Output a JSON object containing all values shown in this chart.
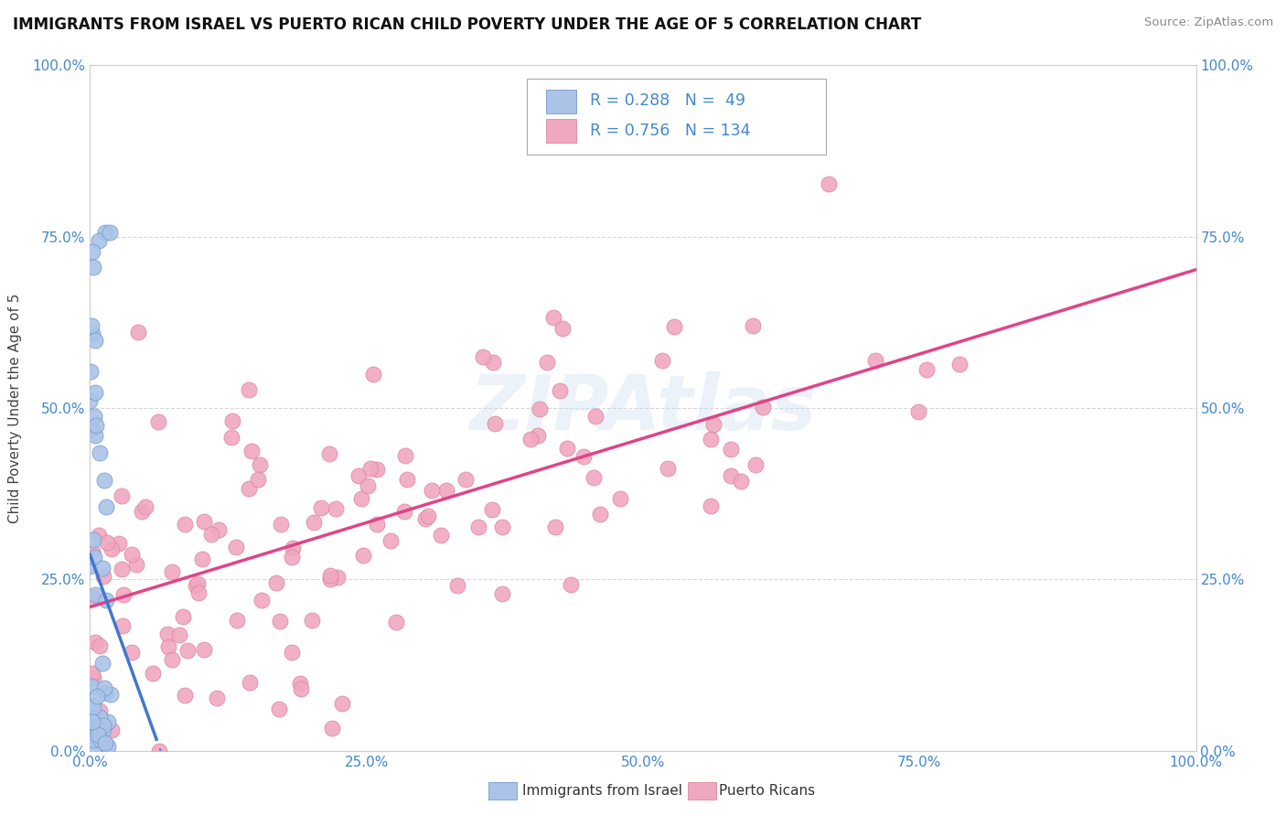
{
  "title": "IMMIGRANTS FROM ISRAEL VS PUERTO RICAN CHILD POVERTY UNDER THE AGE OF 5 CORRELATION CHART",
  "source": "Source: ZipAtlas.com",
  "ylabel": "Child Poverty Under the Age of 5",
  "xlim": [
    0.0,
    1.0
  ],
  "ylim": [
    0.0,
    1.0
  ],
  "xticks": [
    0.0,
    0.25,
    0.5,
    0.75,
    1.0
  ],
  "xticklabels": [
    "0.0%",
    "25.0%",
    "50.0%",
    "75.0%",
    "100.0%"
  ],
  "yticks": [
    0.0,
    0.25,
    0.5,
    0.75,
    1.0
  ],
  "yticklabels": [
    "0.0%",
    "25.0%",
    "50.0%",
    "75.0%",
    "100.0%"
  ],
  "israel_color": "#aac4e8",
  "israel_edge_color": "#7799cc",
  "pr_color": "#f0a8c0",
  "pr_edge_color": "#dd8899",
  "israel_trend_color": "#4477cc",
  "pr_trend_color": "#e04488",
  "israel_R": 0.288,
  "israel_N": 49,
  "pr_R": 0.756,
  "pr_N": 134,
  "legend_label_israel": "Immigrants from Israel",
  "legend_label_pr": "Puerto Ricans",
  "watermark": "ZIPAtlas",
  "background_color": "#ffffff",
  "grid_color": "#cccccc",
  "title_fontsize": 12,
  "label_color": "#4488cc",
  "tick_color": "#4488cc"
}
